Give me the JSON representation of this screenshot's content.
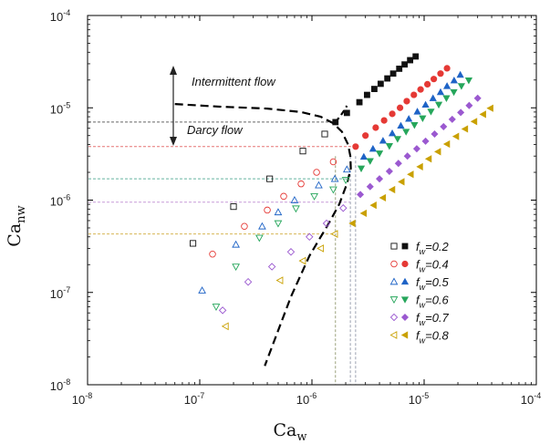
{
  "chart_data": {
    "type": "scatter",
    "title": "",
    "xlabel": "Ca",
    "xlabel_sub": "w",
    "ylabel": "Ca",
    "ylabel_sub": "nw",
    "x_scale": "log",
    "y_scale": "log",
    "xlim": [
      1e-08,
      0.0001
    ],
    "ylim": [
      1e-08,
      0.0001
    ],
    "grid": false,
    "legend_position": "right-lower",
    "x_ticks": [
      {
        "value": 1e-08,
        "base": "10",
        "exp": "-8"
      },
      {
        "value": 1e-07,
        "base": "10",
        "exp": "-7"
      },
      {
        "value": 1e-06,
        "base": "10",
        "exp": "-6"
      },
      {
        "value": 1e-05,
        "base": "10",
        "exp": "-5"
      },
      {
        "value": 0.0001,
        "base": "10",
        "exp": "-4"
      }
    ],
    "y_ticks": [
      {
        "value": 1e-08,
        "base": "10",
        "exp": "-8"
      },
      {
        "value": 1e-07,
        "base": "10",
        "exp": "-7"
      },
      {
        "value": 1e-06,
        "base": "10",
        "exp": "-6"
      },
      {
        "value": 1e-05,
        "base": "10",
        "exp": "-5"
      },
      {
        "value": 0.0001,
        "base": "10",
        "exp": "-4"
      }
    ],
    "annotations": {
      "intermittent": "Intermittent flow",
      "darcy": "Darcy flow"
    },
    "series": [
      {
        "name_prefix": "f",
        "name_sub": "w",
        "name_suffix": "=0.2",
        "color": "#111111",
        "marker": "square",
        "open": [
          [
            8.7e-08,
            3.4e-07
          ],
          [
            2e-07,
            8.5e-07
          ],
          [
            4.2e-07,
            1.7e-06
          ],
          [
            8.3e-07,
            3.4e-06
          ],
          [
            1.3e-06,
            5.2e-06
          ]
        ],
        "filled": [
          [
            1.62e-06,
            7e-06
          ],
          [
            2.05e-06,
            8.8e-06
          ],
          [
            2.65e-06,
            1.15e-05
          ],
          [
            3.1e-06,
            1.38e-05
          ],
          [
            3.6e-06,
            1.6e-05
          ],
          [
            4.1e-06,
            1.82e-05
          ],
          [
            4.7e-06,
            2.08e-05
          ],
          [
            5.3e-06,
            2.35e-05
          ],
          [
            6e-06,
            2.65e-05
          ],
          [
            6.7e-06,
            2.95e-05
          ],
          [
            7.5e-06,
            3.28e-05
          ],
          [
            8.4e-06,
            3.6e-05
          ]
        ]
      },
      {
        "name_prefix": "f",
        "name_sub": "w",
        "name_suffix": "=0.4",
        "color": "#e53935",
        "marker": "circle",
        "open": [
          [
            1.3e-07,
            2.6e-07
          ],
          [
            2.5e-07,
            5.2e-07
          ],
          [
            4e-07,
            7.8e-07
          ],
          [
            5.6e-07,
            1.1e-06
          ],
          [
            8e-07,
            1.5e-06
          ],
          [
            1.1e-06,
            2e-06
          ],
          [
            1.55e-06,
            2.6e-06
          ]
        ],
        "filled": [
          [
            2.45e-06,
            3.8e-06
          ],
          [
            3e-06,
            5e-06
          ],
          [
            3.7e-06,
            6.1e-06
          ],
          [
            4.4e-06,
            7.3e-06
          ],
          [
            5.2e-06,
            8.6e-06
          ],
          [
            6.1e-06,
            1e-05
          ],
          [
            7e-06,
            1.18e-05
          ],
          [
            8.1e-06,
            1.38e-05
          ],
          [
            9.3e-06,
            1.58e-05
          ],
          [
            1.07e-05,
            1.8e-05
          ],
          [
            1.22e-05,
            2.05e-05
          ],
          [
            1.4e-05,
            2.35e-05
          ],
          [
            1.6e-05,
            2.68e-05
          ]
        ]
      },
      {
        "name_prefix": "f",
        "name_sub": "w",
        "name_suffix": "=0.5",
        "color": "#1e63c6",
        "marker": "triangle-up",
        "open": [
          [
            1.05e-07,
            1.05e-07
          ],
          [
            2.1e-07,
            3.3e-07
          ],
          [
            3.6e-07,
            5.2e-07
          ],
          [
            5e-07,
            7.4e-07
          ],
          [
            7e-07,
            1e-06
          ],
          [
            1.15e-06,
            1.45e-06
          ],
          [
            1.6e-06,
            1.7e-06
          ],
          [
            2.05e-06,
            2.15e-06
          ]
        ],
        "filled": [
          [
            2.9e-06,
            2.95e-06
          ],
          [
            3.5e-06,
            3.6e-06
          ],
          [
            4.3e-06,
            4.4e-06
          ],
          [
            5.2e-06,
            5.3e-06
          ],
          [
            6.2e-06,
            6.4e-06
          ],
          [
            7.3e-06,
            7.6e-06
          ],
          [
            8.7e-06,
            9.1e-06
          ],
          [
            1.03e-05,
            1.08e-05
          ],
          [
            1.2e-05,
            1.27e-05
          ],
          [
            1.4e-05,
            1.48e-05
          ],
          [
            1.6e-05,
            1.72e-05
          ],
          [
            1.85e-05,
            1.98e-05
          ],
          [
            2.1e-05,
            2.28e-05
          ]
        ]
      },
      {
        "name_prefix": "f",
        "name_sub": "w",
        "name_suffix": "=0.6",
        "color": "#26a65b",
        "marker": "triangle-down",
        "open": [
          [
            1.4e-07,
            7e-08
          ],
          [
            2.1e-07,
            1.9e-07
          ],
          [
            3.4e-07,
            3.9e-07
          ],
          [
            5e-07,
            5.6e-07
          ],
          [
            7.2e-07,
            8.1e-07
          ],
          [
            1.05e-06,
            1.1e-06
          ],
          [
            1.55e-06,
            1.3e-06
          ],
          [
            2e-06,
            1.65e-06
          ]
        ],
        "filled": [
          [
            2.75e-06,
            2.2e-06
          ],
          [
            3.3e-06,
            2.65e-06
          ],
          [
            4e-06,
            3.2e-06
          ],
          [
            4.9e-06,
            3.85e-06
          ],
          [
            5.8e-06,
            4.6e-06
          ],
          [
            6.9e-06,
            5.5e-06
          ],
          [
            8.2e-06,
            6.5e-06
          ],
          [
            9.7e-06,
            7.7e-06
          ],
          [
            1.15e-05,
            9.1e-06
          ],
          [
            1.35e-05,
            1.08e-05
          ],
          [
            1.58e-05,
            1.27e-05
          ],
          [
            1.84e-05,
            1.48e-05
          ],
          [
            2.15e-05,
            1.72e-05
          ],
          [
            2.5e-05,
            1.98e-05
          ]
        ]
      },
      {
        "name_prefix": "f",
        "name_sub": "w",
        "name_suffix": "=0.7",
        "color": "#9b59d0",
        "marker": "diamond",
        "open": [
          [
            1.6e-07,
            6.4e-08
          ],
          [
            2.7e-07,
            1.3e-07
          ],
          [
            4.4e-07,
            1.9e-07
          ],
          [
            6.5e-07,
            2.75e-07
          ],
          [
            9.5e-07,
            4e-07
          ],
          [
            1.35e-06,
            5.6e-07
          ],
          [
            1.9e-06,
            8.2e-07
          ]
        ],
        "filled": [
          [
            2.7e-06,
            1.15e-06
          ],
          [
            3.3e-06,
            1.4e-06
          ],
          [
            4e-06,
            1.7e-06
          ],
          [
            4.9e-06,
            2.05e-06
          ],
          [
            5.9e-06,
            2.5e-06
          ],
          [
            7.1e-06,
            3e-06
          ],
          [
            8.6e-06,
            3.6e-06
          ],
          [
            1.03e-05,
            4.35e-06
          ],
          [
            1.24e-05,
            5.2e-06
          ],
          [
            1.49e-05,
            6.25e-06
          ],
          [
            1.78e-05,
            7.5e-06
          ],
          [
            2.12e-05,
            8.9e-06
          ],
          [
            2.52e-05,
            1.06e-05
          ],
          [
            3e-05,
            1.27e-05
          ]
        ]
      },
      {
        "name_prefix": "f",
        "name_sub": "w",
        "name_suffix": "=0.8",
        "color": "#c9a000",
        "marker": "triangle-left",
        "open": [
          [
            1.7e-07,
            4.3e-08
          ],
          [
            5.2e-07,
            1.35e-07
          ],
          [
            8.3e-07,
            2.2e-07
          ],
          [
            1.2e-06,
            3e-07
          ],
          [
            1.6e-06,
            4.3e-07
          ]
        ],
        "filled": [
          [
            2.3e-06,
            5.6e-07
          ],
          [
            2.9e-06,
            7.2e-07
          ],
          [
            3.55e-06,
            8.8e-07
          ],
          [
            4.3e-06,
            1.06e-06
          ],
          [
            5.2e-06,
            1.3e-06
          ],
          [
            6.3e-06,
            1.58e-06
          ],
          [
            7.6e-06,
            1.9e-06
          ],
          [
            9.2e-06,
            2.3e-06
          ],
          [
            1.1e-05,
            2.8e-06
          ],
          [
            1.33e-05,
            3.35e-06
          ],
          [
            1.6e-05,
            4.05e-06
          ],
          [
            1.93e-05,
            4.9e-06
          ],
          [
            2.32e-05,
            5.9e-06
          ],
          [
            2.8e-05,
            7.1e-06
          ],
          [
            3.36e-05,
            8.5e-06
          ],
          [
            3.9e-05,
            9.9e-06
          ]
        ]
      }
    ],
    "boundary_upper": [
      [
        6e-08,
        1.1e-05
      ],
      [
        1.5e-07,
        1.03e-05
      ],
      [
        4e-07,
        9.8e-06
      ],
      [
        8e-07,
        9e-06
      ],
      [
        1.2e-06,
        8e-06
      ],
      [
        1.55e-06,
        6.8e-06
      ],
      [
        1.85e-06,
        5.5e-06
      ],
      [
        2.1e-06,
        4e-06
      ],
      [
        2.2e-06,
        3e-06
      ],
      [
        2.22e-06,
        2.2e-06
      ],
      [
        2.05e-06,
        1.5e-06
      ],
      [
        1.75e-06,
        9e-07
      ],
      [
        1.4e-06,
        5.5e-07
      ],
      [
        9.5e-07,
        2.5e-07
      ],
      [
        6.5e-07,
        9e-08
      ],
      [
        3.8e-07,
        1.6e-08
      ]
    ],
    "boundary_branch": [
      [
        1.62e-06,
        7e-06
      ],
      [
        1.8e-06,
        8.2e-06
      ],
      [
        1.95e-06,
        9.5e-06
      ],
      [
        2.05e-06,
        1.05e-05
      ]
    ],
    "reference_lines": [
      {
        "y": 7e-06,
        "x": 1.62e-06,
        "color": "#666666"
      },
      {
        "y": 3.8e-06,
        "x": 2.45e-06,
        "color": "#e57373"
      },
      {
        "y": 1.7e-06,
        "x": 2.05e-06,
        "color": "#66b3a0"
      },
      {
        "y": 9.5e-07,
        "x": 2.2e-06,
        "color": "#c79bd8"
      },
      {
        "y": 4.3e-07,
        "x": 1.6e-06,
        "color": "#d6b656"
      }
    ],
    "vertical_lines": [
      {
        "x": 1.62e-06,
        "color": "#9aa07a"
      },
      {
        "x": 2.2e-06,
        "color": "#9aa0b0"
      },
      {
        "x": 2.45e-06,
        "color": "#9aa0b0"
      }
    ]
  }
}
